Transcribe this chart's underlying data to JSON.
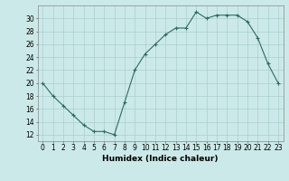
{
  "x": [
    0,
    1,
    2,
    3,
    4,
    5,
    6,
    7,
    8,
    9,
    10,
    11,
    12,
    13,
    14,
    15,
    16,
    17,
    18,
    19,
    20,
    21,
    22,
    23
  ],
  "y": [
    20,
    18,
    16.5,
    15,
    13.5,
    12.5,
    12.5,
    12,
    17,
    22,
    24.5,
    26,
    27.5,
    28.5,
    28.5,
    31,
    30,
    30.5,
    30.5,
    30.5,
    29.5,
    27,
    23,
    20
  ],
  "line_color": "#2d6b5e",
  "marker": "+",
  "bg_color": "#cce9e9",
  "grid_color": "#aacfcf",
  "xlabel": "Humidex (Indice chaleur)",
  "xlim": [
    -0.5,
    23.5
  ],
  "ylim": [
    11,
    32
  ],
  "yticks": [
    12,
    14,
    16,
    18,
    20,
    22,
    24,
    26,
    28,
    30
  ],
  "xticks": [
    0,
    1,
    2,
    3,
    4,
    5,
    6,
    7,
    8,
    9,
    10,
    11,
    12,
    13,
    14,
    15,
    16,
    17,
    18,
    19,
    20,
    21,
    22,
    23
  ],
  "tick_fontsize": 5.5,
  "label_fontsize": 6.5
}
